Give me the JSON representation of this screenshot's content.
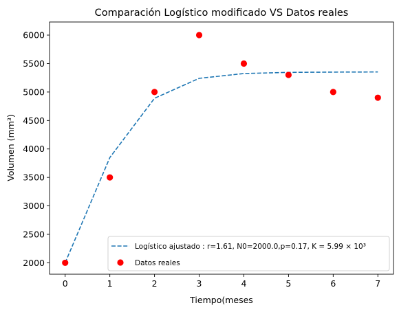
{
  "chart_data": {
    "type": "line",
    "title": "Comparación Logístico modificado VS Datos reales",
    "xlabel": "Tiempo(meses",
    "ylabel": "Volumen (mm³)",
    "xlim": [
      -0.35,
      7.35
    ],
    "ylim": [
      1800,
      6230
    ],
    "xticks": [
      0,
      1,
      2,
      3,
      4,
      5,
      6,
      7
    ],
    "yticks": [
      2000,
      2500,
      3000,
      3500,
      4000,
      4500,
      5000,
      5500,
      6000
    ],
    "grid": false,
    "legend_position": "lower-right",
    "series": [
      {
        "name": "Logístico ajustado : r=1.61, N0=2000.0,p=0.17, K = 5.99 × 10³",
        "style": "dashed-line",
        "color": "#1f77b4",
        "x": [
          0,
          1,
          2,
          3,
          4,
          5,
          6,
          7
        ],
        "y": [
          2000,
          3850,
          4890,
          5240,
          5325,
          5345,
          5350,
          5352
        ]
      },
      {
        "name": "Datos reales",
        "style": "scatter",
        "color": "#ff0000",
        "x": [
          0,
          1,
          2,
          3,
          4,
          5,
          6,
          7
        ],
        "y": [
          2000,
          3500,
          5000,
          6000,
          5500,
          5300,
          5000,
          4900
        ]
      }
    ]
  }
}
